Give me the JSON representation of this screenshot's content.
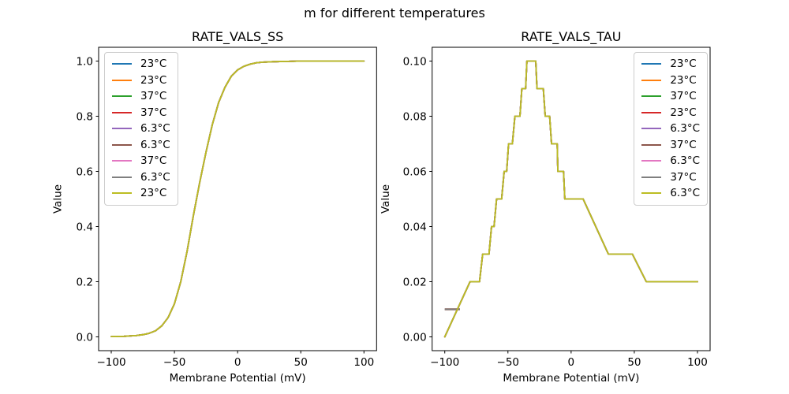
{
  "figure": {
    "suptitle": "m for different temperatures",
    "background": "#ffffff"
  },
  "chart_data": [
    {
      "type": "line",
      "title": "RATE_VALS_SS",
      "xlabel": "Membrane Potential (mV)",
      "ylabel": "Value",
      "xlim": [
        -110,
        110
      ],
      "ylim": [
        -0.05,
        1.05
      ],
      "grid": false,
      "legend_position": "upper-left",
      "x_ticks": {
        "values": [
          -100,
          -50,
          0,
          50,
          100
        ],
        "labels": [
          "−100",
          "−50",
          "0",
          "50",
          "100"
        ]
      },
      "y_ticks": {
        "values": [
          0.0,
          0.2,
          0.4,
          0.6,
          0.8,
          1.0
        ],
        "labels": [
          "0.0",
          "0.2",
          "0.4",
          "0.6",
          "0.8",
          "1.0"
        ]
      },
      "series": [
        {
          "label": "23°C",
          "color": "#1f77b4"
        },
        {
          "label": "23°C",
          "color": "#ff7f0e"
        },
        {
          "label": "37°C",
          "color": "#2ca02c"
        },
        {
          "label": "37°C",
          "color": "#d62728"
        },
        {
          "label": "6.3°C",
          "color": "#9467bd"
        },
        {
          "label": "6.3°C",
          "color": "#8c564b"
        },
        {
          "label": "37°C",
          "color": "#e377c2"
        },
        {
          "label": "6.3°C",
          "color": "#7f7f7f"
        },
        {
          "label": "23°C",
          "color": "#bcbd22"
        }
      ],
      "overlap_note": "all nine series coincide; olive (last) is visible on top",
      "shared_curve": {
        "x": [
          -100,
          -90,
          -80,
          -75,
          -70,
          -65,
          -60,
          -55,
          -50,
          -45,
          -40,
          -35,
          -30,
          -25,
          -20,
          -15,
          -10,
          -5,
          0,
          5,
          10,
          15,
          20,
          30,
          40,
          50,
          60,
          70,
          80,
          90,
          100
        ],
        "y": [
          0.001,
          0.002,
          0.005,
          0.008,
          0.013,
          0.022,
          0.04,
          0.07,
          0.12,
          0.2,
          0.31,
          0.44,
          0.56,
          0.67,
          0.77,
          0.85,
          0.905,
          0.945,
          0.968,
          0.981,
          0.989,
          0.994,
          0.996,
          0.998,
          0.999,
          1.0,
          1.0,
          1.0,
          1.0,
          1.0,
          1.0
        ]
      },
      "extra_segments": []
    },
    {
      "type": "line",
      "title": "RATE_VALS_TAU",
      "xlabel": "Membrane Potential (mV)",
      "ylabel": "Value",
      "xlim": [
        -110,
        110
      ],
      "ylim": [
        -0.005,
        0.105
      ],
      "grid": false,
      "legend_position": "upper-right",
      "x_ticks": {
        "values": [
          -100,
          -50,
          0,
          50,
          100
        ],
        "labels": [
          "−100",
          "−50",
          "0",
          "50",
          "100"
        ]
      },
      "y_ticks": {
        "values": [
          0.0,
          0.02,
          0.04,
          0.06,
          0.08,
          0.1
        ],
        "labels": [
          "0.00",
          "0.02",
          "0.04",
          "0.06",
          "0.08",
          "0.10"
        ]
      },
      "series": [
        {
          "label": "23°C",
          "color": "#1f77b4"
        },
        {
          "label": "23°C",
          "color": "#ff7f0e"
        },
        {
          "label": "37°C",
          "color": "#2ca02c"
        },
        {
          "label": "23°C",
          "color": "#d62728"
        },
        {
          "label": "6.3°C",
          "color": "#9467bd"
        },
        {
          "label": "37°C",
          "color": "#8c564b"
        },
        {
          "label": "6.3°C",
          "color": "#e377c2"
        },
        {
          "label": "37°C",
          "color": "#7f7f7f"
        },
        {
          "label": "6.3°C",
          "color": "#bcbd22"
        }
      ],
      "overlap_note": "all nine series coincide except a flat 0.01 start for the 37C series; olive (last) is visible on top",
      "shared_curve": {
        "x": [
          -100,
          -80,
          -72.5,
          -70,
          -65,
          -63,
          -61,
          -59,
          -55,
          -53,
          -51,
          -49.5,
          -46.5,
          -44.5,
          -40.5,
          -39,
          -36,
          -35,
          -28,
          -27,
          -22,
          -20.5,
          -17,
          -15.5,
          -11,
          -10.5,
          -6,
          -5,
          9.5,
          29.5,
          48.5,
          59.5,
          100
        ],
        "y": [
          0.0,
          0.02,
          0.02,
          0.03,
          0.03,
          0.04,
          0.04,
          0.05,
          0.05,
          0.06,
          0.06,
          0.07,
          0.07,
          0.08,
          0.08,
          0.09,
          0.09,
          0.1,
          0.1,
          0.09,
          0.09,
          0.08,
          0.08,
          0.07,
          0.07,
          0.06,
          0.06,
          0.05,
          0.05,
          0.03,
          0.03,
          0.02,
          0.02
        ]
      },
      "extra_segments": [
        {
          "label": "37°C",
          "color": "#8c564b",
          "x": [
            -100,
            -88
          ],
          "y": [
            0.01,
            0.01
          ]
        },
        {
          "label": "37°C",
          "color": "#7f7f7f",
          "x": [
            -100,
            -88
          ],
          "y": [
            0.01,
            0.01
          ]
        }
      ]
    }
  ]
}
